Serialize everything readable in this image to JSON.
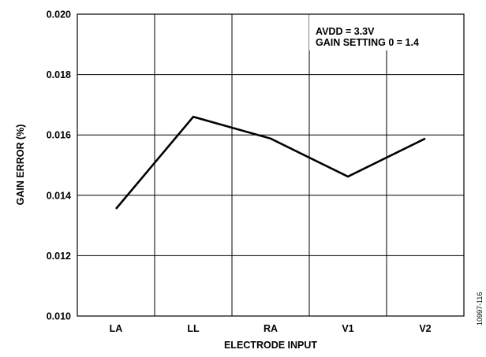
{
  "chart_data": {
    "type": "line",
    "categories": [
      "LA",
      "LL",
      "RA",
      "V1",
      "V2"
    ],
    "series": [
      {
        "values": [
          0.01355,
          0.0166,
          0.01588,
          0.01462,
          0.01588
        ]
      }
    ],
    "xlabel": "ELECTRODE INPUT",
    "ylabel": "GAIN ERROR (%)",
    "ylim": [
      0.01,
      0.02
    ],
    "yticks": [
      "0.010",
      "0.012",
      "0.014",
      "0.016",
      "0.018",
      "0.020"
    ],
    "grid": true,
    "annotations": [
      "AVDD = 3.3V",
      "GAIN SETTING 0 = 1.4"
    ],
    "figure_code": "10997-116",
    "colors": {
      "line": "#000000",
      "grid": "#000000",
      "background": "#ffffff"
    }
  }
}
